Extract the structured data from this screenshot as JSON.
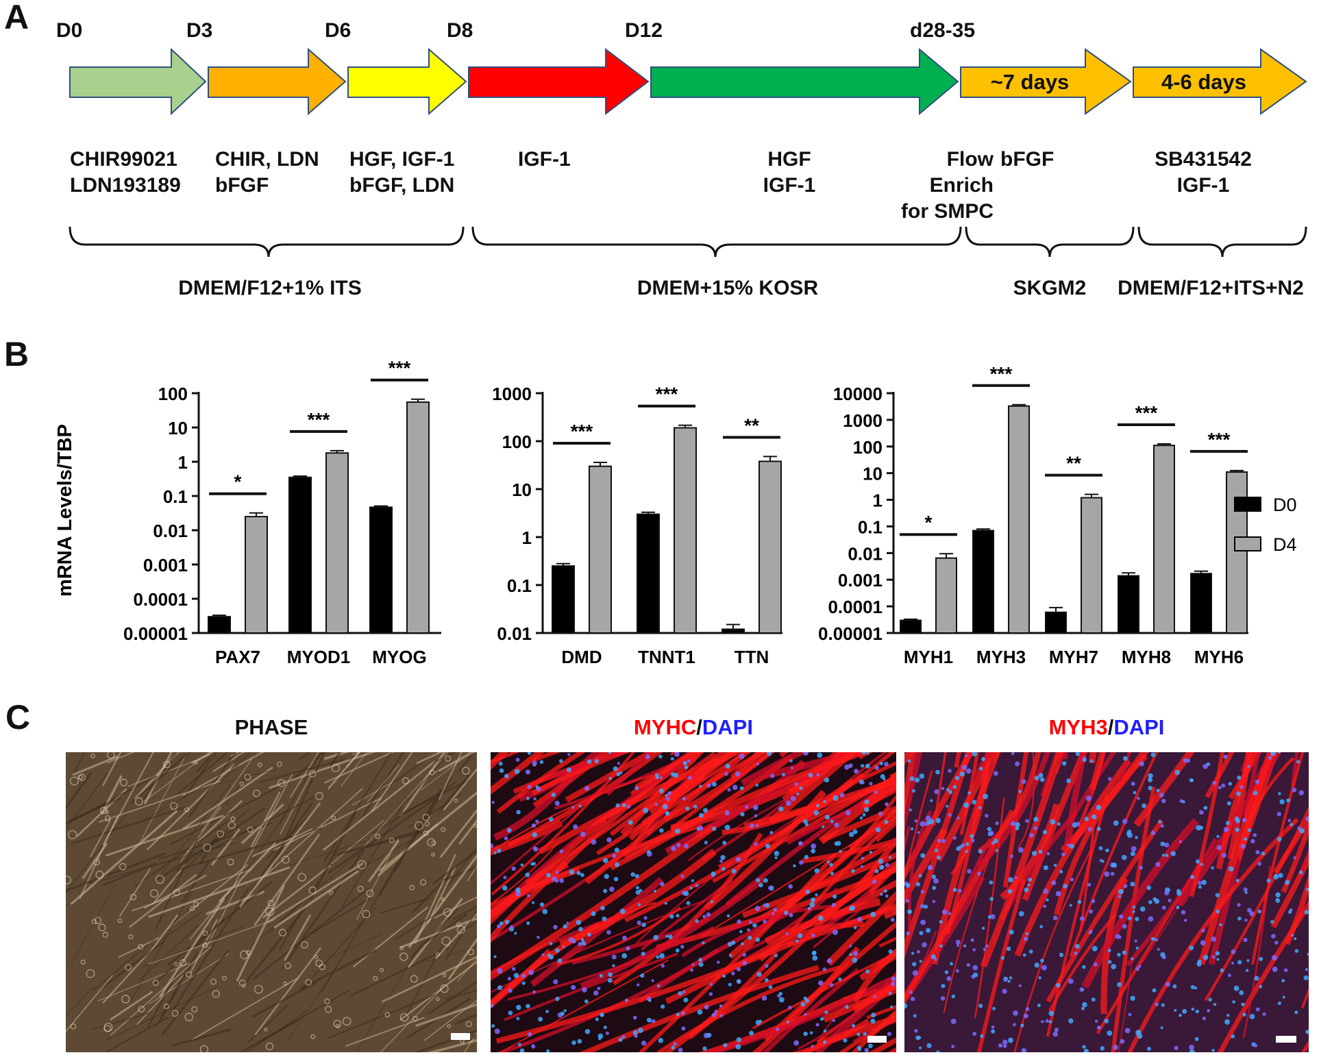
{
  "panels": {
    "a": "A",
    "b": "B",
    "c": "C"
  },
  "timeline": {
    "days": [
      "D0",
      "D3",
      "D6",
      "D8",
      "D12",
      "d28-35"
    ],
    "arrows": [
      {
        "color": "#a9d18e",
        "label": ""
      },
      {
        "color": "#ffb000",
        "label": ""
      },
      {
        "color": "#ffff00",
        "label": ""
      },
      {
        "color": "#ff0000",
        "label": ""
      },
      {
        "color": "#00b050",
        "label": ""
      },
      {
        "color": "#ffc000",
        "label": "~7 days"
      },
      {
        "color": "#ffc000",
        "label": "4-6 days"
      }
    ],
    "reagents": [
      "CHIR99021\nLDN193189",
      "CHIR, LDN\nbFGF",
      "HGF, IGF-1\nbFGF, LDN",
      "IGF-1",
      "HGF\nIGF-1",
      "Flow\nEnrich\nfor SMPC",
      "bFGF",
      "SB431542\nIGF-1"
    ],
    "media": [
      "DMEM/F12+1% ITS",
      "DMEM+15% KOSR",
      "SKGM2",
      "DMEM/F12+ITS+N2"
    ]
  },
  "chart_data": [
    {
      "type": "bar",
      "ylabel": "mRNA Levels/TBP",
      "yscale": "log",
      "ylim": [
        1e-05,
        100
      ],
      "yticks": [
        "0.00001",
        "0.0001",
        "0.001",
        "0.01",
        "0.1",
        "1",
        "10",
        "100"
      ],
      "categories": [
        "PAX7",
        "MYOD1",
        "MYOG"
      ],
      "series": [
        {
          "name": "D0",
          "values": [
            3e-05,
            0.35,
            0.047
          ],
          "errors": [
            3e-06,
            0.03,
            0.004
          ]
        },
        {
          "name": "D4",
          "values": [
            0.025,
            1.8,
            55
          ],
          "errors": [
            0.007,
            0.3,
            12
          ]
        }
      ],
      "significance": [
        "*",
        "***",
        "***"
      ]
    },
    {
      "type": "bar",
      "yscale": "log",
      "ylim": [
        0.01,
        1000
      ],
      "yticks": [
        "0.01",
        "0.1",
        "1",
        "10",
        "100",
        "1000"
      ],
      "categories": [
        "DMD",
        "TNNT1",
        "TTN"
      ],
      "series": [
        {
          "name": "D0",
          "values": [
            0.25,
            3,
            0.012
          ],
          "errors": [
            0.03,
            0.3,
            0.003
          ]
        },
        {
          "name": "D4",
          "values": [
            30,
            190,
            38
          ],
          "errors": [
            6,
            25,
            10
          ]
        }
      ],
      "significance": [
        "***",
        "***",
        "**"
      ]
    },
    {
      "type": "bar",
      "yscale": "log",
      "ylim": [
        1e-05,
        10000
      ],
      "yticks": [
        "0.00001",
        "0.0001",
        "0.001",
        "0.01",
        "0.1",
        "1",
        "10",
        "100",
        "1000",
        "10000"
      ],
      "categories": [
        "MYH1",
        "MYH3",
        "MYH7",
        "MYH8",
        "MYH6"
      ],
      "series": [
        {
          "name": "D0",
          "values": [
            3e-05,
            0.07,
            6e-05,
            0.0014,
            0.0017
          ],
          "errors": [
            3e-06,
            0.01,
            3e-05,
            0.0004,
            0.0004
          ]
        },
        {
          "name": "D4",
          "values": [
            0.0065,
            3300,
            1.2,
            110,
            11
          ],
          "errors": [
            0.003,
            400,
            0.4,
            15,
            1.5
          ]
        }
      ],
      "significance": [
        "*",
        "***",
        "**",
        "***",
        "***"
      ]
    }
  ],
  "legend": {
    "d0": "D0",
    "d4": "D4",
    "d0_color": "#000000",
    "d4_color": "#a6a6a6"
  },
  "images": {
    "phase": {
      "title": "PHASE"
    },
    "myhc": {
      "title_red": "MYHC",
      "sep": "/",
      "title_blue": "DAPI"
    },
    "myh3": {
      "title_red": "MYH3",
      "sep": "/",
      "title_blue": "DAPI"
    },
    "red": "#ff0000",
    "blue": "#1f1fff"
  }
}
